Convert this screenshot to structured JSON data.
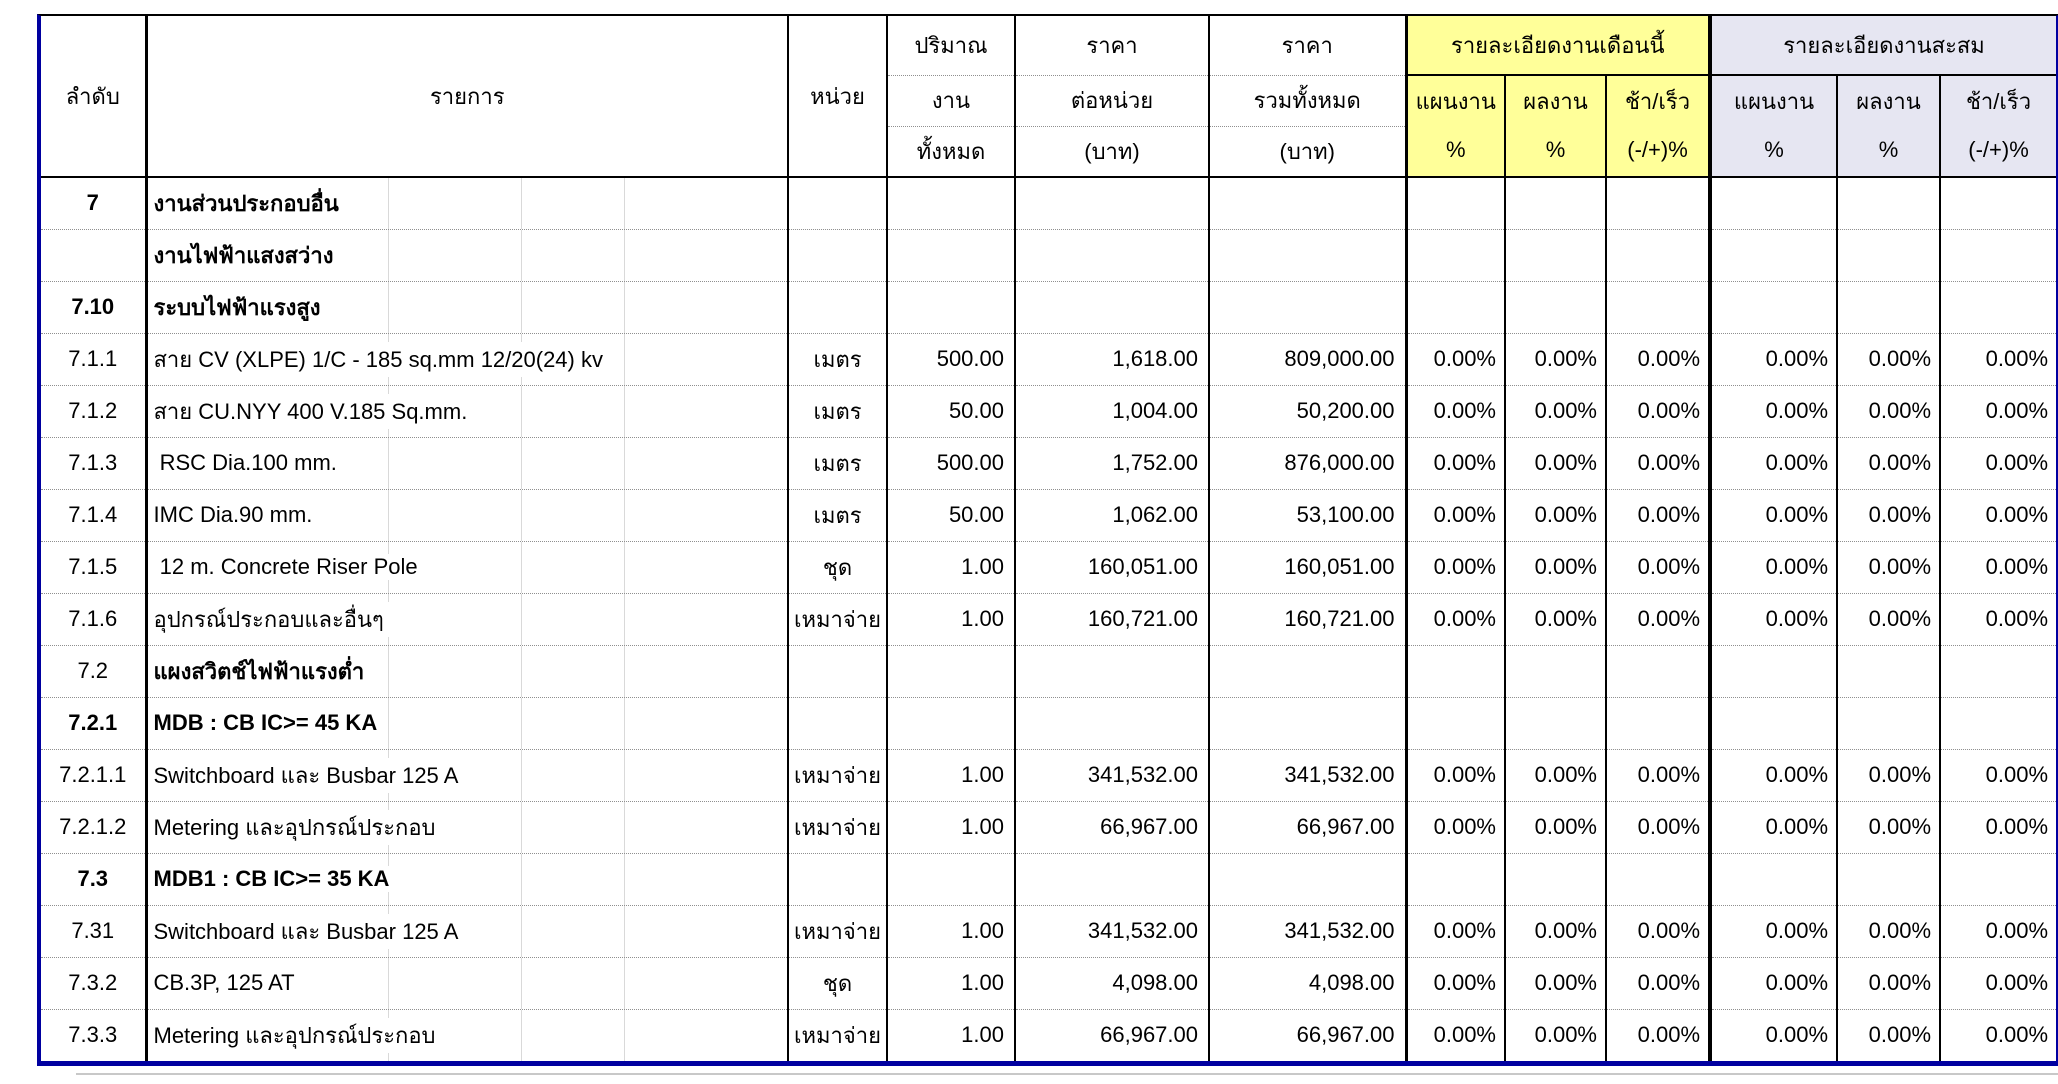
{
  "header": {
    "col_no": "ลำดับ",
    "col_item": "รายการ",
    "col_unit": "หน่วย",
    "col_qty": [
      "ปริมาณ",
      "งาน",
      "ทั้งหมด"
    ],
    "col_unit_price": [
      "ราคา",
      "ต่อหน่วย",
      "(บาท)"
    ],
    "col_total_price": [
      "ราคา",
      "รวมทั้งหมด",
      "(บาท)"
    ],
    "group_month": "รายละเอียดงานเดือนนี้",
    "group_cumulative": "รายละเอียดงานสะสม",
    "sub_plan": [
      "แผนงาน",
      "%"
    ],
    "sub_actual": [
      "ผลงาน",
      "%"
    ],
    "sub_diff": [
      "ช้า/เร็ว",
      "(-/+)%"
    ]
  },
  "colors": {
    "month_group_header": "#FFFF99",
    "cumulative_group_header": "#E6E6F2",
    "outer_border": "#0000A0"
  },
  "rows": [
    {
      "no": "7",
      "item": "งานส่วนประกอบอื่น",
      "unit": "",
      "qty": "",
      "unit_price": "",
      "total_price": "",
      "m_plan": "",
      "m_actual": "",
      "m_diff": "",
      "c_plan": "",
      "c_actual": "",
      "c_diff": "",
      "no_bold": true,
      "item_bold": true
    },
    {
      "no": "",
      "item": "งานไฟฟ้าแสงสว่าง",
      "unit": "",
      "qty": "",
      "unit_price": "",
      "total_price": "",
      "m_plan": "",
      "m_actual": "",
      "m_diff": "",
      "c_plan": "",
      "c_actual": "",
      "c_diff": "",
      "no_bold": false,
      "item_bold": true
    },
    {
      "no": "7.10",
      "item": "ระบบไฟฟ้าแรงสูง",
      "unit": "",
      "qty": "",
      "unit_price": "",
      "total_price": "",
      "m_plan": "",
      "m_actual": "",
      "m_diff": "",
      "c_plan": "",
      "c_actual": "",
      "c_diff": "",
      "no_bold": true,
      "item_bold": true
    },
    {
      "no": "7.1.1",
      "item": "สาย CV (XLPE) 1/C - 185 sq.mm 12/20(24) kv",
      "unit": "เมตร",
      "qty": "500.00",
      "unit_price": "1,618.00",
      "total_price": "809,000.00",
      "m_plan": "0.00%",
      "m_actual": "0.00%",
      "m_diff": "0.00%",
      "c_plan": "0.00%",
      "c_actual": "0.00%",
      "c_diff": "0.00%",
      "no_bold": false,
      "item_bold": false
    },
    {
      "no": "7.1.2",
      "item": "สาย CU.NYY 400 V.185 Sq.mm.",
      "unit": "เมตร",
      "qty": "50.00",
      "unit_price": "1,004.00",
      "total_price": "50,200.00",
      "m_plan": "0.00%",
      "m_actual": "0.00%",
      "m_diff": "0.00%",
      "c_plan": "0.00%",
      "c_actual": "0.00%",
      "c_diff": "0.00%",
      "no_bold": false,
      "item_bold": false
    },
    {
      "no": "7.1.3",
      "item": " RSC Dia.100 mm.",
      "unit": "เมตร",
      "qty": "500.00",
      "unit_price": "1,752.00",
      "total_price": "876,000.00",
      "m_plan": "0.00%",
      "m_actual": "0.00%",
      "m_diff": "0.00%",
      "c_plan": "0.00%",
      "c_actual": "0.00%",
      "c_diff": "0.00%",
      "no_bold": false,
      "item_bold": false
    },
    {
      "no": "7.1.4",
      "item": "IMC Dia.90 mm.",
      "unit": "เมตร",
      "qty": "50.00",
      "unit_price": "1,062.00",
      "total_price": "53,100.00",
      "m_plan": "0.00%",
      "m_actual": "0.00%",
      "m_diff": "0.00%",
      "c_plan": "0.00%",
      "c_actual": "0.00%",
      "c_diff": "0.00%",
      "no_bold": false,
      "item_bold": false
    },
    {
      "no": "7.1.5",
      "item": " 12 m. Concrete Riser Pole",
      "unit": "ชุด",
      "qty": "1.00",
      "unit_price": "160,051.00",
      "total_price": "160,051.00",
      "m_plan": "0.00%",
      "m_actual": "0.00%",
      "m_diff": "0.00%",
      "c_plan": "0.00%",
      "c_actual": "0.00%",
      "c_diff": "0.00%",
      "no_bold": false,
      "item_bold": false
    },
    {
      "no": "7.1.6",
      "item": "อุปกรณ์ประกอบและอื่นๆ",
      "unit": "เหมาจ่าย",
      "qty": "1.00",
      "unit_price": "160,721.00",
      "total_price": "160,721.00",
      "m_plan": "0.00%",
      "m_actual": "0.00%",
      "m_diff": "0.00%",
      "c_plan": "0.00%",
      "c_actual": "0.00%",
      "c_diff": "0.00%",
      "no_bold": false,
      "item_bold": false
    },
    {
      "no": "7.2",
      "item": "แผงสวิตช์ไฟฟ้าแรงต่ำ",
      "unit": "",
      "qty": "",
      "unit_price": "",
      "total_price": "",
      "m_plan": "",
      "m_actual": "",
      "m_diff": "",
      "c_plan": "",
      "c_actual": "",
      "c_diff": "",
      "no_bold": false,
      "item_bold": true
    },
    {
      "no": "7.2.1",
      "item": "MDB : CB IC>= 45 KA",
      "unit": "",
      "qty": "",
      "unit_price": "",
      "total_price": "",
      "m_plan": "",
      "m_actual": "",
      "m_diff": "",
      "c_plan": "",
      "c_actual": "",
      "c_diff": "",
      "no_bold": true,
      "item_bold": true
    },
    {
      "no": "7.2.1.1",
      "item": "Switchboard และ Busbar 125 A",
      "unit": "เหมาจ่าย",
      "qty": "1.00",
      "unit_price": "341,532.00",
      "total_price": "341,532.00",
      "m_plan": "0.00%",
      "m_actual": "0.00%",
      "m_diff": "0.00%",
      "c_plan": "0.00%",
      "c_actual": "0.00%",
      "c_diff": "0.00%",
      "no_bold": false,
      "item_bold": false
    },
    {
      "no": "7.2.1.2",
      "item": "Metering และอุปกรณ์ประกอบ",
      "unit": "เหมาจ่าย",
      "qty": "1.00",
      "unit_price": "66,967.00",
      "total_price": "66,967.00",
      "m_plan": "0.00%",
      "m_actual": "0.00%",
      "m_diff": "0.00%",
      "c_plan": "0.00%",
      "c_actual": "0.00%",
      "c_diff": "0.00%",
      "no_bold": false,
      "item_bold": false
    },
    {
      "no": "7.3",
      "item": "MDB1 : CB IC>= 35 KA",
      "unit": "",
      "qty": "",
      "unit_price": "",
      "total_price": "",
      "m_plan": "",
      "m_actual": "",
      "m_diff": "",
      "c_plan": "",
      "c_actual": "",
      "c_diff": "",
      "no_bold": true,
      "item_bold": true
    },
    {
      "no": "7.31",
      "item": "Switchboard และ Busbar 125 A",
      "unit": "เหมาจ่าย",
      "qty": "1.00",
      "unit_price": "341,532.00",
      "total_price": "341,532.00",
      "m_plan": "0.00%",
      "m_actual": "0.00%",
      "m_diff": "0.00%",
      "c_plan": "0.00%",
      "c_actual": "0.00%",
      "c_diff": "0.00%",
      "no_bold": false,
      "item_bold": false
    },
    {
      "no": "7.3.2",
      "item": "CB.3P, 125 AT",
      "unit": "ชุด",
      "qty": "1.00",
      "unit_price": "4,098.00",
      "total_price": "4,098.00",
      "m_plan": "0.00%",
      "m_actual": "0.00%",
      "m_diff": "0.00%",
      "c_plan": "0.00%",
      "c_actual": "0.00%",
      "c_diff": "0.00%",
      "no_bold": false,
      "item_bold": false
    },
    {
      "no": "7.3.3",
      "item": "Metering และอุปกรณ์ประกอบ",
      "unit": "เหมาจ่าย",
      "qty": "1.00",
      "unit_price": "66,967.00",
      "total_price": "66,967.00",
      "m_plan": "0.00%",
      "m_actual": "0.00%",
      "m_diff": "0.00%",
      "c_plan": "0.00%",
      "c_actual": "0.00%",
      "c_diff": "0.00%",
      "no_bold": false,
      "item_bold": false
    }
  ]
}
